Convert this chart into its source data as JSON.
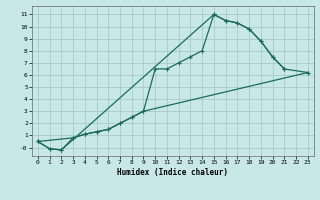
{
  "xlabel": "Humidex (Indice chaleur)",
  "bg_color": "#c8e8e8",
  "grid_color": "#aac8c8",
  "line_color": "#1a6b5a",
  "xlim": [
    -0.5,
    23.5
  ],
  "ylim": [
    -0.7,
    11.7
  ],
  "xtick_labels": [
    "0",
    "1",
    "2",
    "3",
    "4",
    "5",
    "6",
    "7",
    "8",
    "9",
    "10",
    "11",
    "12",
    "13",
    "14",
    "15",
    "16",
    "17",
    "18",
    "19",
    "20",
    "21",
    "22",
    "23"
  ],
  "ytick_labels": [
    "-0",
    "1",
    "2",
    "3",
    "4",
    "5",
    "6",
    "7",
    "8",
    "9",
    "10",
    "11"
  ],
  "ytick_vals": [
    0,
    1,
    2,
    3,
    4,
    5,
    6,
    7,
    8,
    9,
    10,
    11
  ],
  "line1_x": [
    0,
    1,
    2,
    3,
    4,
    5,
    6,
    7,
    8,
    9,
    10,
    11,
    12,
    13,
    14,
    15,
    16,
    17,
    18,
    19,
    20,
    21
  ],
  "line1_y": [
    0.5,
    -0.1,
    -0.2,
    0.8,
    1.1,
    1.3,
    1.5,
    2.0,
    2.5,
    3.0,
    6.5,
    6.5,
    7.0,
    7.5,
    8.0,
    11.0,
    10.5,
    10.3,
    9.8,
    8.8,
    7.5,
    6.5
  ],
  "line2_x": [
    0,
    3,
    4,
    5,
    6,
    7,
    8,
    9,
    23
  ],
  "line2_y": [
    0.5,
    0.8,
    1.1,
    1.3,
    1.5,
    2.0,
    2.5,
    3.0,
    6.2
  ],
  "line3_x": [
    0,
    1,
    2,
    15,
    16,
    17,
    18,
    19,
    20,
    21,
    23
  ],
  "line3_y": [
    0.5,
    -0.1,
    -0.2,
    11.0,
    10.5,
    10.3,
    9.8,
    8.8,
    7.5,
    6.5,
    6.2
  ]
}
